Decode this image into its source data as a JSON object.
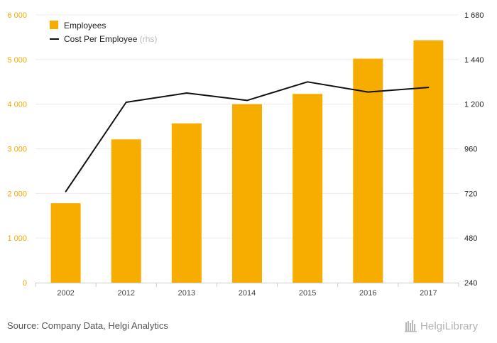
{
  "chart_data": {
    "type": "bar",
    "categories": [
      "2002",
      "2012",
      "2013",
      "2014",
      "2015",
      "2016",
      "2017"
    ],
    "series": [
      {
        "name": "Employees",
        "chart_type": "bar",
        "axis": "left",
        "color": "#f7ad00",
        "values": [
          1780,
          3210,
          3570,
          4000,
          4230,
          5020,
          5430
        ]
      },
      {
        "name": "Cost Per Employee",
        "name_suffix": "(rhs)",
        "chart_type": "line",
        "axis": "right",
        "color": "#111111",
        "values": [
          730,
          1210,
          1260,
          1220,
          1320,
          1265,
          1290
        ]
      }
    ],
    "y_left": {
      "min": 0,
      "max": 6000,
      "ticks": [
        0,
        1000,
        2000,
        3000,
        4000,
        5000,
        6000
      ],
      "tick_labels": [
        "0",
        "1 000",
        "2 000",
        "3 000",
        "4 000",
        "5 000",
        "6 000"
      ],
      "tick_color": "#f2a900"
    },
    "y_right": {
      "min": 240,
      "max": 1680,
      "ticks": [
        240,
        480,
        720,
        960,
        1200,
        1440,
        1680
      ],
      "tick_labels": [
        "240",
        "480",
        "720",
        "960",
        "1 200",
        "1 440",
        "1 680"
      ]
    },
    "grid": true,
    "legend_position": "top-left"
  },
  "footer": {
    "source": "Source: Company Data, Helgi Analytics",
    "brand": "HelgiLibrary"
  }
}
